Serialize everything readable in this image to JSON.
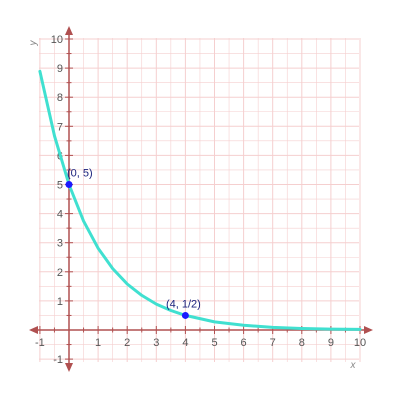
{
  "chart_data": {
    "type": "line",
    "title": "",
    "xlabel": "x",
    "ylabel": "y",
    "xlim": [
      -1,
      10
    ],
    "ylim": [
      -1,
      10
    ],
    "grid": true,
    "x_ticks": [
      -1,
      1,
      2,
      3,
      4,
      5,
      6,
      7,
      8,
      9,
      10
    ],
    "y_ticks": [
      -1,
      1,
      2,
      3,
      4,
      5,
      6,
      7,
      8,
      9,
      10
    ],
    "x_tick_labels": [
      "-1",
      "1",
      "2",
      "3",
      "4",
      "5",
      "6",
      "7",
      "8",
      "9",
      "10"
    ],
    "y_tick_labels": [
      "-1",
      "1",
      "2",
      "3",
      "4",
      "5",
      "6",
      "7",
      "8",
      "9",
      "10"
    ],
    "series": [
      {
        "function": "y = 5 * (0.5623)^x",
        "x": [
          -1,
          -0.5,
          0,
          0.5,
          1,
          1.5,
          2,
          2.5,
          3,
          3.5,
          4,
          5,
          6,
          7,
          8,
          9,
          10
        ],
        "y": [
          8.89,
          6.67,
          5.0,
          3.75,
          2.81,
          2.11,
          1.58,
          1.19,
          0.89,
          0.67,
          0.5,
          0.28,
          0.16,
          0.09,
          0.05,
          0.03,
          0.02
        ],
        "color": "#40e0d0"
      }
    ],
    "points": [
      {
        "x": 0,
        "y": 5,
        "label": "(0, 5)",
        "color": "#1a1aff"
      },
      {
        "x": 4,
        "y": 0.5,
        "label": "(4, 1/2)",
        "color": "#1a1aff"
      }
    ],
    "colors": {
      "grid": "#f5cfcf",
      "axis": "#b05050",
      "curve": "#40e0d0"
    }
  }
}
